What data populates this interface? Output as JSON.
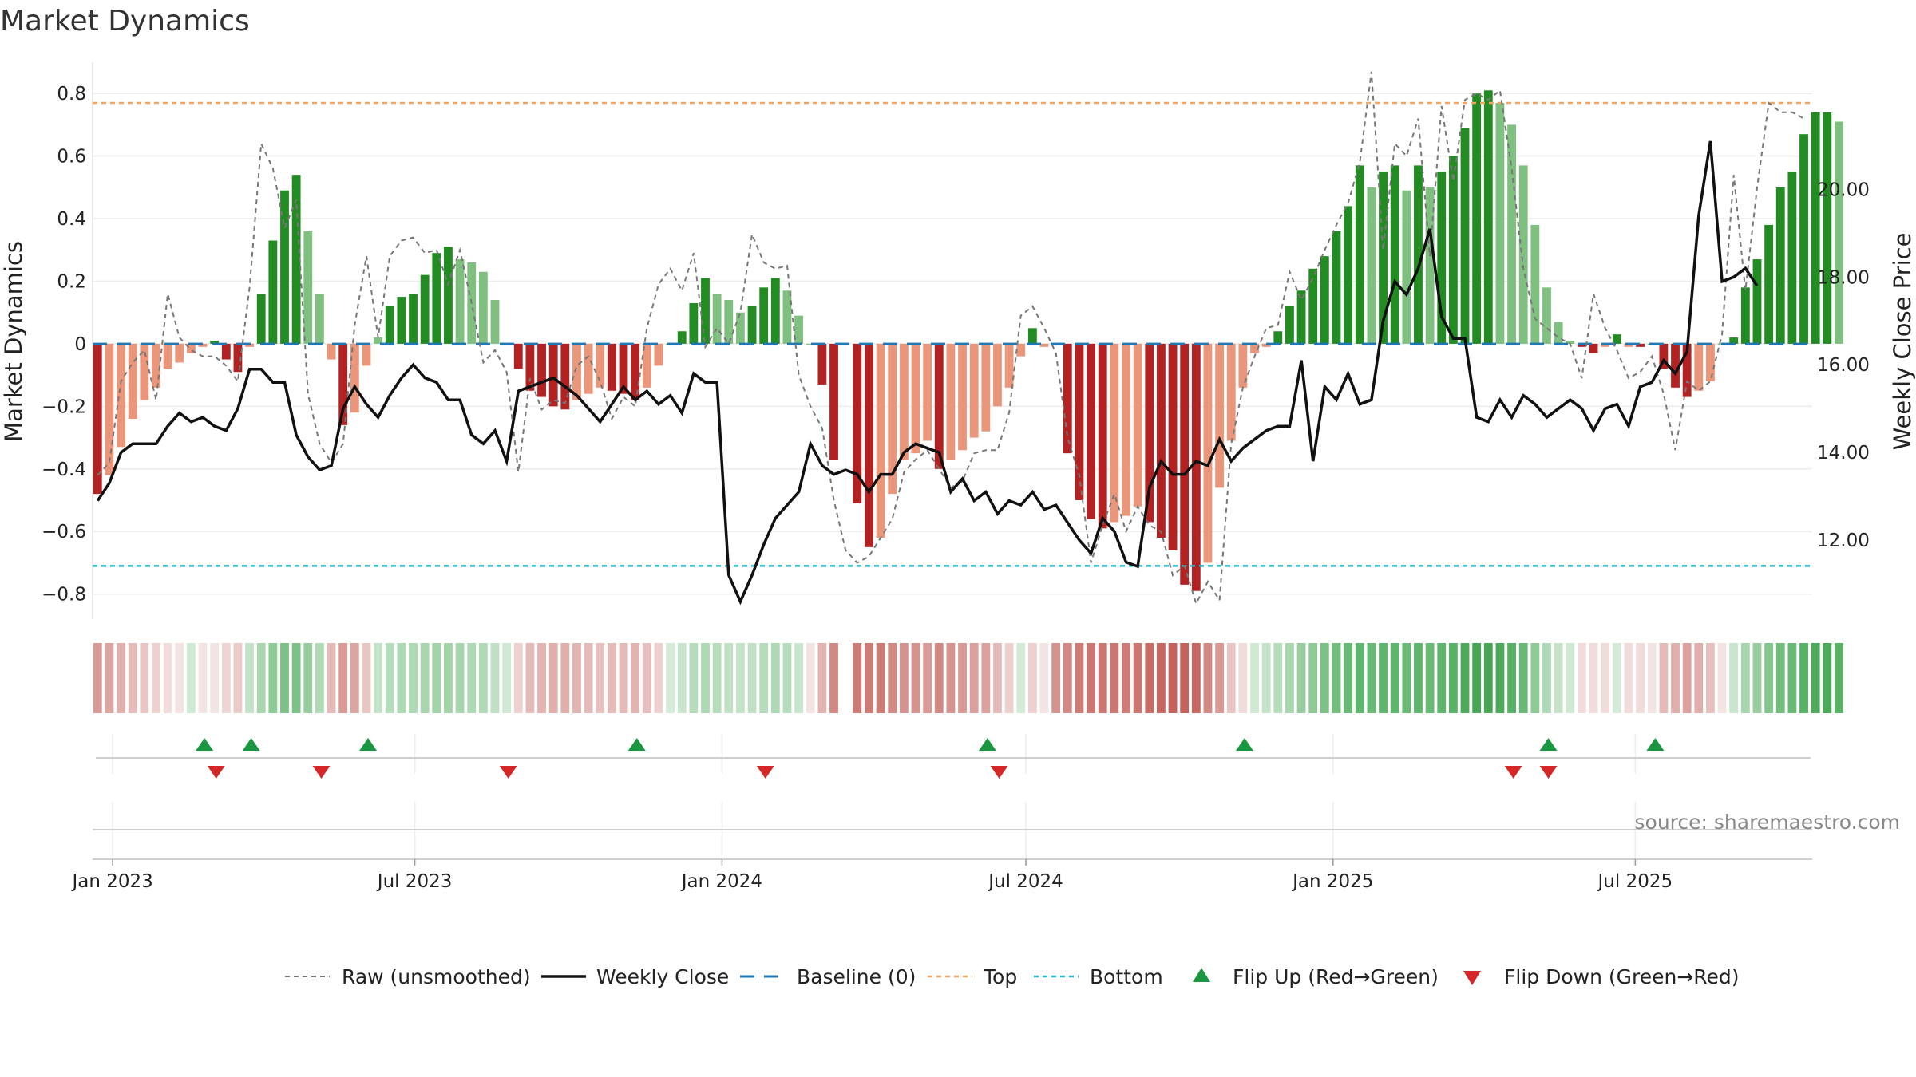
{
  "title": "Market Dynamics",
  "source": "source: sharemaestro.com",
  "chart_data": {
    "type": "bar",
    "left_axis": {
      "label": "Market Dynamics",
      "range": [
        -0.88,
        0.9
      ],
      "ticks": [
        {
          "v": 0.8,
          "t": "0.8"
        },
        {
          "v": 0.6,
          "t": "0.6"
        },
        {
          "v": 0.4,
          "t": "0.4"
        },
        {
          "v": 0.2,
          "t": "0.2"
        },
        {
          "v": 0,
          "t": "0"
        },
        {
          "v": -0.2,
          "t": "−0.2"
        },
        {
          "v": -0.4,
          "t": "−0.4"
        },
        {
          "v": -0.6,
          "t": "−0.6"
        },
        {
          "v": -0.8,
          "t": "−0.8"
        }
      ]
    },
    "right_axis": {
      "label": "Weekly Close Price",
      "range": [
        10.2,
        22.9
      ],
      "ticks": [
        {
          "v": 20,
          "t": "20.00"
        },
        {
          "v": 18,
          "t": "18.00"
        },
        {
          "v": 16,
          "t": "16.00"
        },
        {
          "v": 14,
          "t": "14.00"
        },
        {
          "v": 12,
          "t": "12.00"
        }
      ]
    },
    "x_start": "2022-12-23",
    "week_days": 7,
    "x_range": [
      "2022-12-20",
      "2025-10-15"
    ],
    "x_ticks": [
      {
        "date": "2023-01-01",
        "label": "Jan 2023"
      },
      {
        "date": "2023-07-01",
        "label": "Jul 2023"
      },
      {
        "date": "2024-01-01",
        "label": "Jan 2024"
      },
      {
        "date": "2024-07-01",
        "label": "Jul 2024"
      },
      {
        "date": "2025-01-01",
        "label": "Jan 2025"
      },
      {
        "date": "2025-07-01",
        "label": "Jul 2025"
      }
    ],
    "top_level": 0.77,
    "bottom_level": -0.71,
    "colors": {
      "strong_red": "#b22222",
      "light_red": "#e9967a",
      "strong_green": "#228b22",
      "light_green": "#7fbf7f",
      "raw": "#777777",
      "close": "#111111",
      "baseline": "#1f77b4",
      "top": "#f4a460",
      "bottom": "#17becf",
      "flip_up": "#1a9641",
      "flip_down": "#d62728"
    },
    "series": [
      {
        "name": "Market Dynamics",
        "values": [
          -0.48,
          -0.42,
          -0.33,
          -0.24,
          -0.18,
          -0.14,
          -0.08,
          -0.06,
          -0.03,
          -0.01,
          0.01,
          -0.05,
          -0.09,
          -0.01,
          0.16,
          0.33,
          0.49,
          0.54,
          0.36,
          0.16,
          -0.05,
          -0.26,
          -0.22,
          -0.07,
          0.02,
          0.12,
          0.15,
          0.16,
          0.22,
          0.29,
          0.31,
          0.27,
          0.26,
          0.23,
          0.14,
          0.0,
          -0.08,
          -0.15,
          -0.17,
          -0.2,
          -0.21,
          -0.18,
          -0.16,
          -0.14,
          -0.15,
          -0.16,
          -0.18,
          -0.14,
          -0.07,
          0.0,
          0.04,
          0.13,
          0.21,
          0.16,
          0.14,
          0.1,
          0.12,
          0.18,
          0.21,
          0.17,
          0.09,
          0.0,
          -0.13,
          -0.37,
          null,
          -0.51,
          -0.65,
          -0.62,
          -0.48,
          -0.37,
          -0.35,
          -0.31,
          -0.4,
          -0.37,
          -0.34,
          -0.3,
          -0.28,
          -0.2,
          -0.14,
          -0.04,
          0.05,
          -0.01,
          0.0,
          -0.35,
          -0.5,
          -0.56,
          -0.59,
          -0.57,
          -0.55,
          -0.52,
          -0.57,
          -0.62,
          -0.66,
          -0.77,
          -0.79,
          -0.7,
          -0.46,
          -0.31,
          -0.14,
          -0.03,
          -0.01,
          0.04,
          0.12,
          0.17,
          0.24,
          0.28,
          0.36,
          0.44,
          0.57,
          0.5,
          0.55,
          0.57,
          0.49,
          0.57,
          0.5,
          0.55,
          0.6,
          0.69,
          0.8,
          0.81,
          0.77,
          0.7,
          0.57,
          0.38,
          0.18,
          0.07,
          0.01,
          -0.01,
          -0.03,
          -0.01,
          0.03,
          -0.01,
          -0.01,
          0.0,
          -0.08,
          -0.14,
          -0.17,
          -0.15,
          -0.12,
          0.0,
          0.02,
          0.18,
          0.27,
          0.38,
          0.5,
          0.55,
          0.67,
          0.74,
          0.74,
          0.71
        ]
      },
      {
        "name": "Raw (unsmoothed)",
        "values": [
          -0.42,
          -0.38,
          -0.12,
          -0.06,
          -0.02,
          -0.18,
          0.16,
          0.02,
          -0.02,
          -0.04,
          -0.04,
          -0.07,
          -0.12,
          0.18,
          0.64,
          0.56,
          0.37,
          0.46,
          -0.16,
          -0.32,
          -0.38,
          -0.32,
          0.06,
          0.28,
          0.02,
          0.28,
          0.33,
          0.34,
          0.29,
          0.3,
          0.19,
          0.3,
          0.13,
          -0.06,
          -0.02,
          -0.09,
          -0.41,
          -0.11,
          -0.21,
          -0.18,
          -0.19,
          -0.07,
          -0.04,
          -0.12,
          -0.24,
          -0.17,
          -0.2,
          0.05,
          0.19,
          0.24,
          0.17,
          0.29,
          -0.01,
          0.05,
          0.0,
          0.1,
          0.35,
          0.26,
          0.24,
          0.25,
          -0.1,
          -0.2,
          -0.27,
          -0.5,
          -0.66,
          -0.7,
          -0.68,
          -0.62,
          -0.56,
          -0.41,
          -0.37,
          -0.34,
          -0.4,
          -0.46,
          -0.44,
          -0.35,
          -0.34,
          -0.34,
          -0.22,
          0.09,
          0.12,
          0.05,
          -0.03,
          -0.3,
          -0.42,
          -0.7,
          -0.58,
          -0.48,
          -0.6,
          -0.52,
          -0.58,
          -0.6,
          -0.74,
          -0.71,
          -0.83,
          -0.76,
          -0.82,
          -0.32,
          -0.14,
          -0.04,
          0.05,
          0.06,
          0.23,
          0.14,
          0.21,
          0.3,
          0.38,
          0.45,
          0.58,
          0.87,
          0.3,
          0.64,
          0.6,
          0.72,
          0.28,
          0.76,
          0.52,
          0.78,
          0.8,
          0.78,
          0.81,
          0.56,
          0.24,
          0.08,
          0.05,
          0.02,
          0.0,
          -0.11,
          0.16,
          0.05,
          -0.02,
          -0.11,
          -0.09,
          -0.04,
          -0.16,
          -0.34,
          -0.12,
          -0.15,
          -0.12,
          0.03,
          0.54,
          0.17,
          0.5,
          0.77,
          0.74,
          0.74,
          0.72
        ]
      },
      {
        "name": "Weekly Close",
        "values": [
          12.9,
          13.3,
          14.0,
          14.2,
          14.2,
          14.2,
          14.6,
          14.9,
          14.7,
          14.8,
          14.6,
          14.5,
          15.0,
          15.9,
          15.9,
          15.6,
          15.6,
          14.4,
          13.9,
          13.6,
          13.7,
          15.0,
          15.5,
          15.1,
          14.8,
          15.3,
          15.7,
          16.0,
          15.7,
          15.6,
          15.2,
          15.2,
          14.4,
          14.2,
          14.5,
          13.8,
          15.4,
          15.5,
          15.6,
          15.7,
          15.5,
          15.3,
          15.0,
          14.7,
          15.1,
          15.5,
          15.2,
          15.4,
          15.1,
          15.3,
          14.9,
          15.8,
          15.6,
          15.6,
          11.2,
          10.6,
          11.2,
          11.9,
          12.5,
          12.8,
          13.1,
          14.2,
          13.7,
          13.5,
          13.6,
          13.5,
          13.1,
          13.5,
          13.5,
          14.0,
          14.2,
          14.1,
          14.0,
          13.1,
          13.4,
          12.9,
          13.1,
          12.6,
          12.9,
          12.8,
          13.1,
          12.7,
          12.8,
          12.4,
          12.0,
          11.7,
          12.5,
          12.2,
          11.5,
          11.4,
          13.2,
          13.8,
          13.5,
          13.5,
          13.8,
          13.7,
          14.3,
          13.8,
          14.1,
          14.3,
          14.5,
          14.6,
          14.6,
          16.1,
          13.8,
          15.5,
          15.2,
          15.8,
          15.1,
          15.2,
          17.0,
          17.9,
          17.6,
          18.2,
          19.1,
          17.1,
          16.6,
          16.6,
          14.8,
          14.7,
          15.2,
          14.8,
          15.3,
          15.1,
          14.8,
          15.0,
          15.2,
          15.0,
          14.5,
          15.0,
          15.1,
          14.6,
          15.5,
          15.6,
          16.1,
          15.8,
          16.3,
          19.4,
          21.1,
          17.9,
          18.0,
          18.2,
          17.8
        ]
      }
    ],
    "color_strip": [
      "#d99a96",
      "#dba5a1",
      "#e0b0ad",
      "#e4bbb9",
      "#e8c6c4",
      "#ecd1cf",
      "#f0dcdb",
      "#f2e4e3",
      "#cfe9d2",
      "#f2e4e3",
      "#f2e4e3",
      "#edd5d4",
      "#e9cbc9",
      "#c4e2c8",
      "#a9d5ae",
      "#8ecb96",
      "#7cc286",
      "#7cc286",
      "#96cb9e",
      "#b0dab6",
      "#e4bbb9",
      "#d99a96",
      "#dba5a1",
      "#e8c6c4",
      "#c4e2c8",
      "#b5ddbb",
      "#add9b4",
      "#add9b4",
      "#a7d6ae",
      "#a2d3a9",
      "#a2d3a9",
      "#a7d6ae",
      "#add9b4",
      "#b0dab6",
      "#bfe0c4",
      "#cfe9d2",
      "#ecd1cf",
      "#e4bbb9",
      "#e2b4b1",
      "#e0aeab",
      "#e0aeab",
      "#e2b4b1",
      "#e4bbb9",
      "#e6c0be",
      "#e4bbb9",
      "#e4bbb9",
      "#e2b4b1",
      "#e6c0be",
      "#ecd1cf",
      "#d4ebd7",
      "#c9e5cd",
      "#b5ddbb",
      "#add9b4",
      "#b5ddbb",
      "#bfe0c4",
      "#c4e2c8",
      "#bfe0c4",
      "#b5ddbb",
      "#add9b4",
      "#b5ddbb",
      "#c9e5cd",
      "#f2e4e3",
      "#e2b4b1",
      "#d28883",
      null,
      "#cd7b75",
      "#cd7b75",
      "#cd7b75",
      "#d28883",
      "#d59390",
      "#d59390",
      "#d99a96",
      "#d28883",
      "#d59390",
      "#d99a96",
      "#db9f9c",
      "#dca19e",
      "#e4bbb9",
      "#ecd1cf",
      "#d4ebd7",
      "#ecd1cf",
      "#f2e4e3",
      "#d59390",
      "#d28883",
      "#cd7b75",
      "#cb7670",
      "#cb7670",
      "#cb7670",
      "#cd7b75",
      "#cb7670",
      "#c76b65",
      "#c66762",
      "#c4625c",
      "#c4625c",
      "#c66762",
      "#d28883",
      "#d99a96",
      "#e8c6c4",
      "#f0dcdb",
      "#cfe9d2",
      "#c4e2c8",
      "#b5ddbb",
      "#a7d6ae",
      "#98ce9f",
      "#8ecb96",
      "#7cc286",
      "#70bd7c",
      "#67b973",
      "#5eb56b",
      "#67b973",
      "#5eb56b",
      "#5eb56b",
      "#67b973",
      "#5eb56b",
      "#67b973",
      "#5eb56b",
      "#58b165",
      "#4ea95b",
      "#47a555",
      "#47a555",
      "#4ea95b",
      "#58b165",
      "#67b973",
      "#8ecb96",
      "#add9b4",
      "#c4e2c8",
      "#cfe9d2",
      "#f0dcdb",
      "#f0dcdb",
      "#f0dcdb",
      "#d4ebd7",
      "#f0dcdb",
      "#f0dcdb",
      "#f2e4e3",
      "#e4bbb9",
      "#e0aeab",
      "#dca19e",
      "#e0aeab",
      "#e6c0be",
      "#f2e4e3",
      "#c9e5cd",
      "#a7d6ae",
      "#98ce9f",
      "#84c48d",
      "#70bd7c",
      "#67b973",
      "#58b165",
      "#4ea95b",
      "#4ea95b",
      "#58b165"
    ],
    "flips_up": [
      "2023-02-25",
      "2023-03-25",
      "2023-06-03",
      "2023-11-11",
      "2024-06-08",
      "2024-11-09",
      "2025-05-10",
      "2025-07-13"
    ],
    "flips_down": [
      "2023-03-04",
      "2023-05-06",
      "2023-08-26",
      "2024-01-27",
      "2024-06-15",
      "2025-04-19",
      "2025-05-10"
    ],
    "legend": [
      "Raw (unsmoothed)",
      "Weekly Close",
      "Baseline (0)",
      "Top",
      "Bottom",
      "Flip Up (Red→Green)",
      "Flip Down (Green→Red)"
    ]
  }
}
